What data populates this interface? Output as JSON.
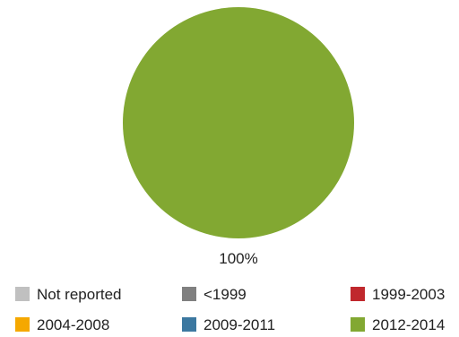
{
  "chart_data": {
    "type": "pie",
    "categories": [
      "Not reported",
      "<1999",
      "1999-2003",
      "2004-2008",
      "2009-2011",
      "2012-2014"
    ],
    "values": [
      0,
      0,
      0,
      0,
      0,
      100
    ],
    "colors": [
      "#c0c0c0",
      "#808080",
      "#c0282d",
      "#f5a800",
      "#3c78a0",
      "#82a832"
    ],
    "data_labels": [
      "100%"
    ],
    "legend_position": "bottom",
    "title": ""
  }
}
